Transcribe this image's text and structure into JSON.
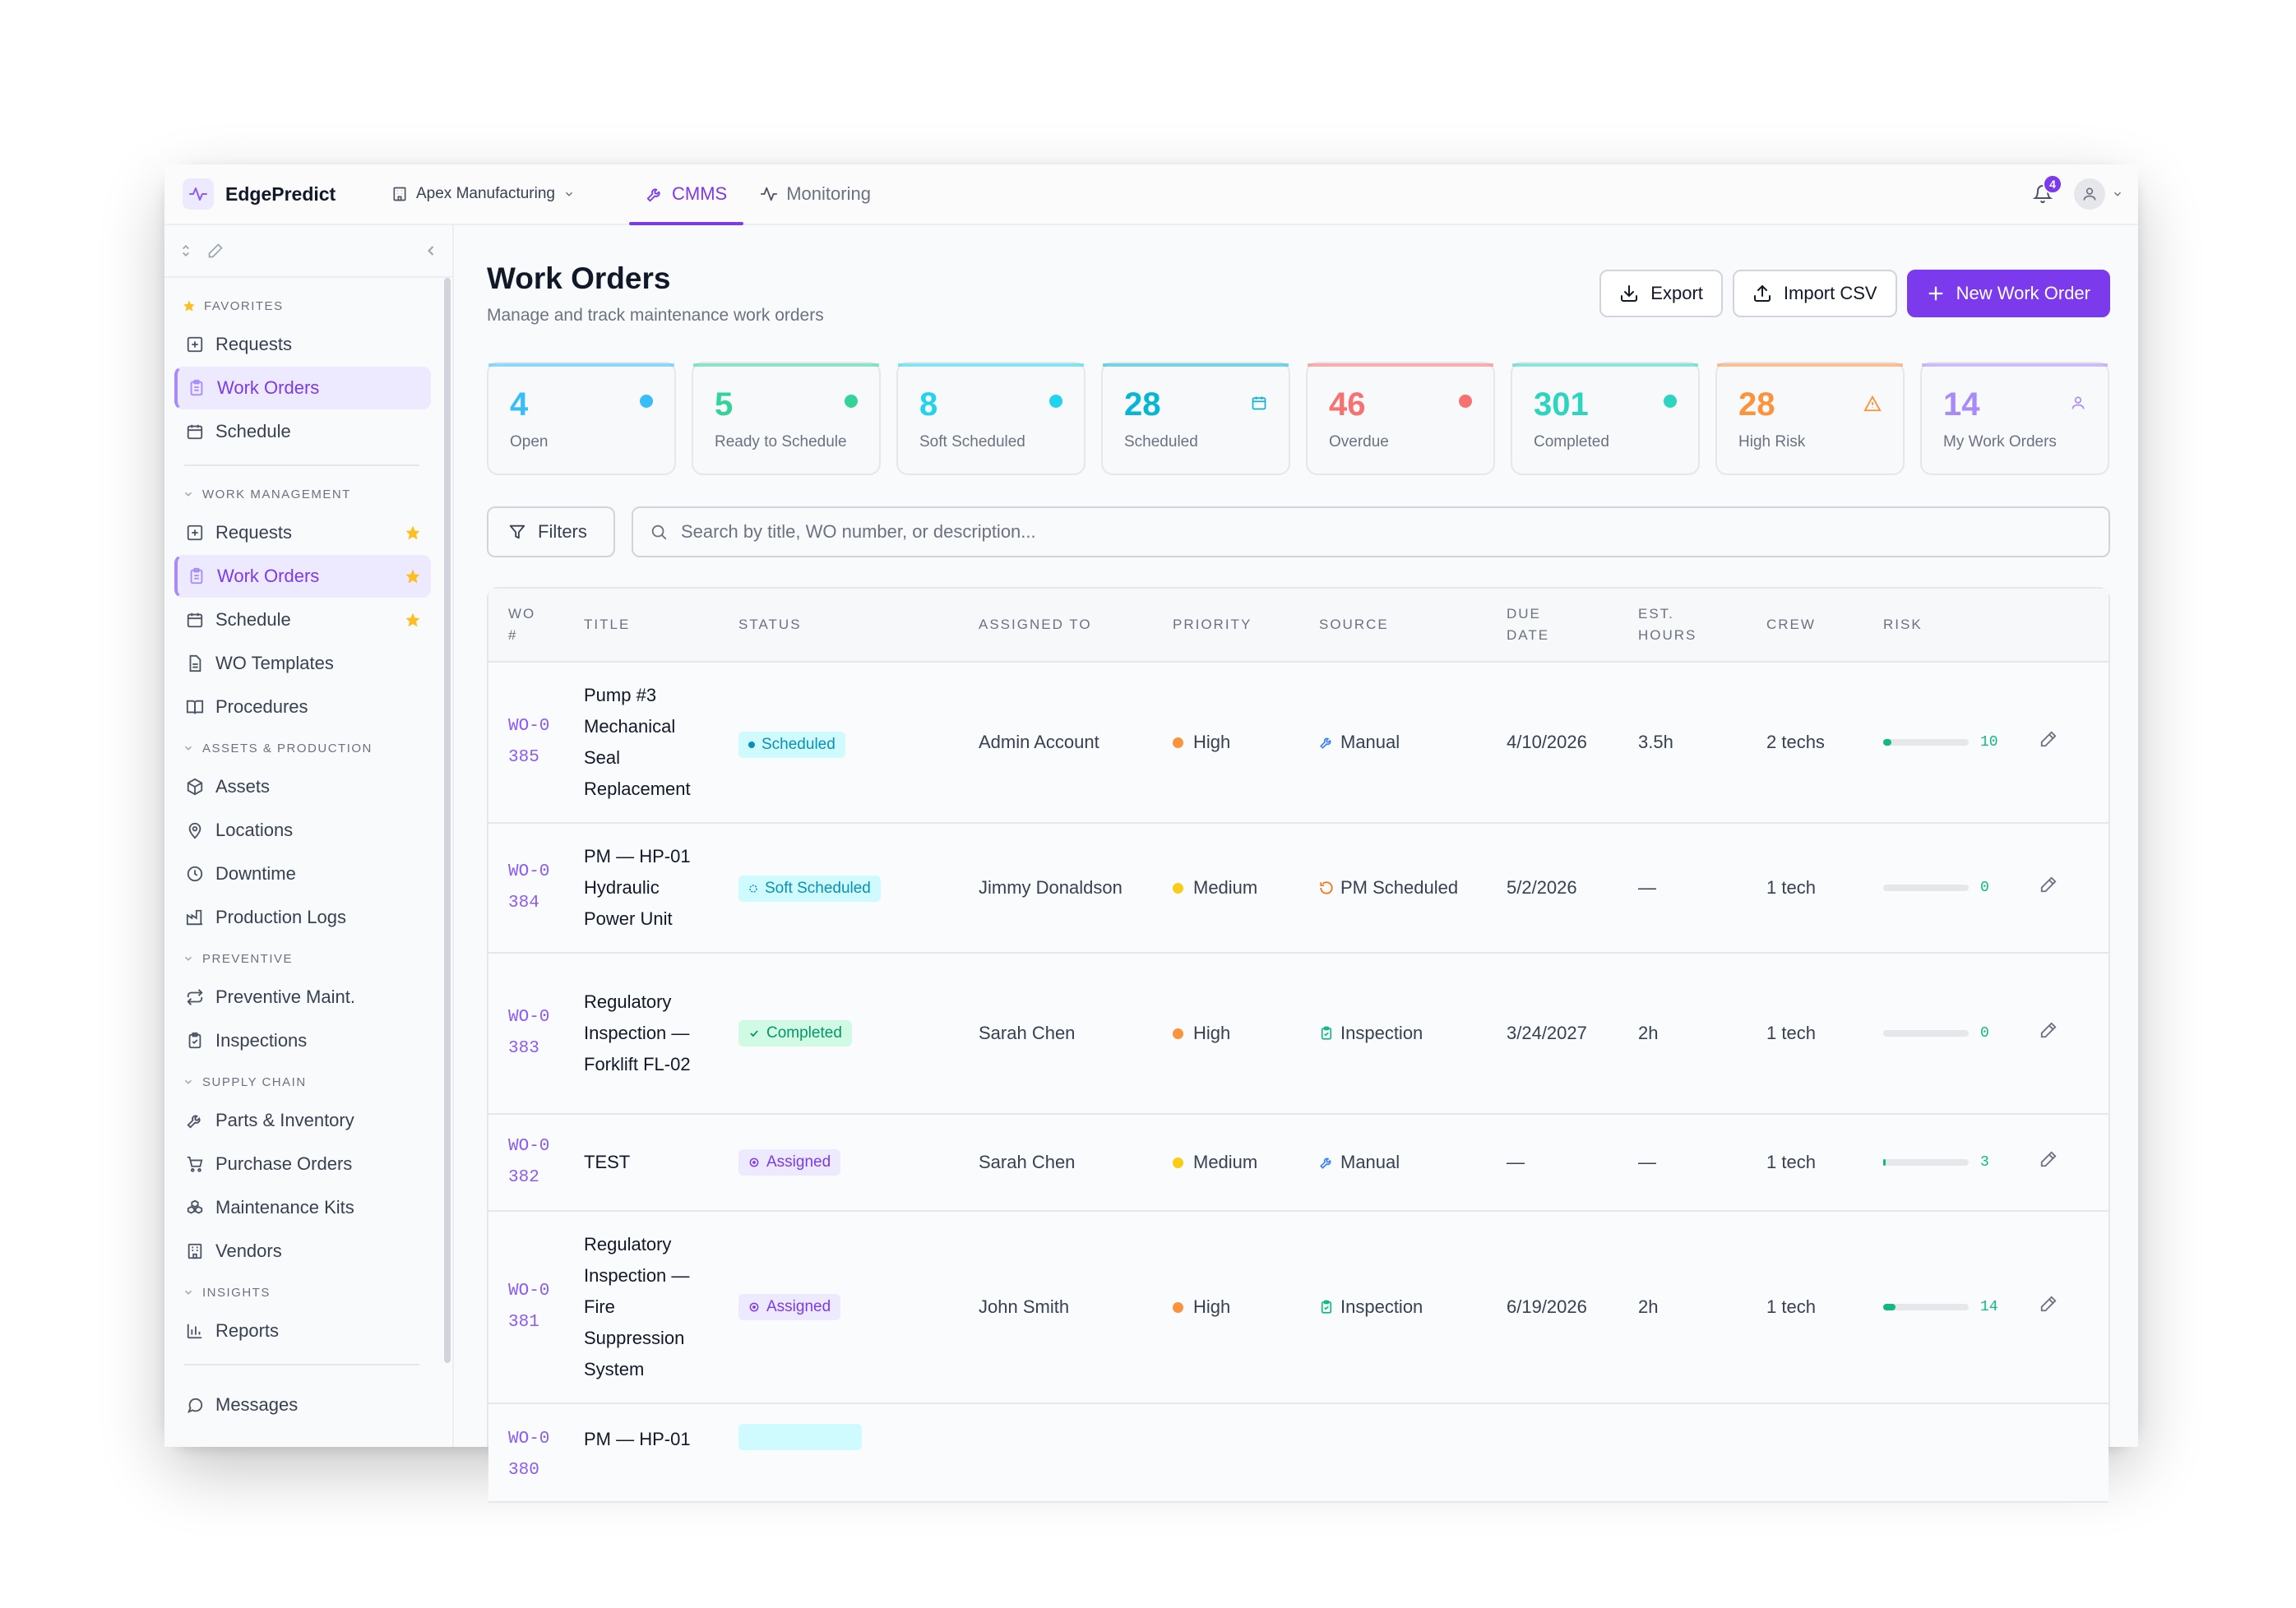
{
  "app": {
    "brand": "EdgePredict",
    "org": "Apex Manufacturing",
    "tabs": [
      {
        "label": "CMMS",
        "active": true
      },
      {
        "label": "Monitoring",
        "active": false
      }
    ],
    "notifications": "4",
    "accent": "#7c3aed"
  },
  "sidebar": {
    "favorites_label": "FAVORITES",
    "favorites": [
      {
        "label": "Requests",
        "icon": "request-icon"
      },
      {
        "label": "Work Orders",
        "icon": "clipboard-icon",
        "active": true
      },
      {
        "label": "Schedule",
        "icon": "calendar-icon"
      }
    ],
    "work_management_label": "WORK MANAGEMENT",
    "work_management": [
      {
        "label": "Requests",
        "icon": "request-icon",
        "starred": true
      },
      {
        "label": "Work Orders",
        "icon": "clipboard-icon",
        "starred": true,
        "active": true
      },
      {
        "label": "Schedule",
        "icon": "calendar-icon",
        "starred": true
      },
      {
        "label": "WO Templates",
        "icon": "file-icon"
      },
      {
        "label": "Procedures",
        "icon": "book-icon"
      }
    ],
    "assets_label": "ASSETS & PRODUCTION",
    "assets": [
      {
        "label": "Assets",
        "icon": "box-icon"
      },
      {
        "label": "Locations",
        "icon": "pin-icon"
      },
      {
        "label": "Downtime",
        "icon": "clock-icon"
      },
      {
        "label": "Production Logs",
        "icon": "factory-icon"
      }
    ],
    "preventive_label": "PREVENTIVE",
    "preventive": [
      {
        "label": "Preventive Maint.",
        "icon": "repeat-icon"
      },
      {
        "label": "Inspections",
        "icon": "clipboard-check-icon"
      }
    ],
    "supply_label": "SUPPLY CHAIN",
    "supply": [
      {
        "label": "Parts & Inventory",
        "icon": "wrench-icon"
      },
      {
        "label": "Purchase Orders",
        "icon": "cart-icon"
      },
      {
        "label": "Maintenance Kits",
        "icon": "boxes-icon"
      },
      {
        "label": "Vendors",
        "icon": "building-icon"
      }
    ],
    "insights_label": "INSIGHTS",
    "insights": [
      {
        "label": "Reports",
        "icon": "bar-chart-icon"
      }
    ],
    "messages": "Messages"
  },
  "page": {
    "title": "Work Orders",
    "subtitle": "Manage and track maintenance work orders",
    "export_label": "Export",
    "import_label": "Import CSV",
    "new_label": "New Work Order"
  },
  "stats": [
    {
      "value": "4",
      "label": "Open",
      "color": "#38bdf8",
      "marker": "dot"
    },
    {
      "value": "5",
      "label": "Ready to Schedule",
      "color": "#34d399",
      "marker": "dot"
    },
    {
      "value": "8",
      "label": "Soft Scheduled",
      "color": "#22d3ee",
      "marker": "dot"
    },
    {
      "value": "28",
      "label": "Scheduled",
      "color": "#06b6d4",
      "marker": "calendar"
    },
    {
      "value": "46",
      "label": "Overdue",
      "color": "#f87171",
      "marker": "dot"
    },
    {
      "value": "301",
      "label": "Completed",
      "color": "#2dd4bf",
      "marker": "dot"
    },
    {
      "value": "28",
      "label": "High Risk",
      "color": "#fb923c",
      "marker": "warning"
    },
    {
      "value": "14",
      "label": "My Work Orders",
      "color": "#a78bfa",
      "marker": "user"
    }
  ],
  "filters": {
    "label": "Filters",
    "search_placeholder": "Search by title, WO number, or description..."
  },
  "table": {
    "headers": {
      "wo": "WO #",
      "title": "TITLE",
      "status": "STATUS",
      "assigned": "ASSIGNED TO",
      "priority": "PRIORITY",
      "source": "SOURCE",
      "due": "DUE DATE",
      "hours": "EST. HOURS",
      "crew": "CREW",
      "risk": "RISK"
    },
    "rows": [
      {
        "wo": "WO-0385",
        "title": "Pump #3 Mechanical Seal Replacement",
        "status": "Scheduled",
        "status_kind": "scheduled",
        "assigned": "Admin Account",
        "priority": "High",
        "priority_color": "#fb923c",
        "source": "Manual",
        "source_kind": "manual",
        "due": "4/10/2026",
        "hours": "3.5h",
        "crew": "2 techs",
        "risk": 10
      },
      {
        "wo": "WO-0384",
        "title": "PM — HP-01 Hydraulic Power Unit",
        "status": "Soft Scheduled",
        "status_kind": "soft",
        "assigned": "Jimmy Donaldson",
        "priority": "Medium",
        "priority_color": "#facc15",
        "source": "PM Scheduled",
        "source_kind": "pm",
        "due": "5/2/2026",
        "hours": "—",
        "crew": "1 tech",
        "risk": 0
      },
      {
        "wo": "WO-0383",
        "title": "Regulatory Inspection — Forklift FL-02",
        "status": "Completed",
        "status_kind": "completed",
        "assigned": "Sarah Chen",
        "priority": "High",
        "priority_color": "#fb923c",
        "source": "Inspection",
        "source_kind": "inspection",
        "due": "3/24/2027",
        "hours": "2h",
        "crew": "1 tech",
        "risk": 0
      },
      {
        "wo": "WO-0382",
        "title": "TEST",
        "status": "Assigned",
        "status_kind": "assigned",
        "assigned": "Sarah Chen",
        "priority": "Medium",
        "priority_color": "#facc15",
        "source": "Manual",
        "source_kind": "manual",
        "due": "—",
        "hours": "—",
        "crew": "1 tech",
        "risk": 3
      },
      {
        "wo": "WO-0381",
        "title": "Regulatory Inspection — Fire Suppression System",
        "status": "Assigned",
        "status_kind": "assigned",
        "assigned": "John Smith",
        "priority": "High",
        "priority_color": "#fb923c",
        "source": "Inspection",
        "source_kind": "inspection",
        "due": "6/19/2026",
        "hours": "2h",
        "crew": "1 tech",
        "risk": 14
      },
      {
        "wo": "WO-0380",
        "title": "PM — HP-01",
        "status": "",
        "status_kind": "soft",
        "assigned": "",
        "priority": "",
        "priority_color": "#facc15",
        "source": "",
        "source_kind": "none",
        "due": "",
        "hours": "",
        "crew": "",
        "risk": null
      }
    ]
  }
}
